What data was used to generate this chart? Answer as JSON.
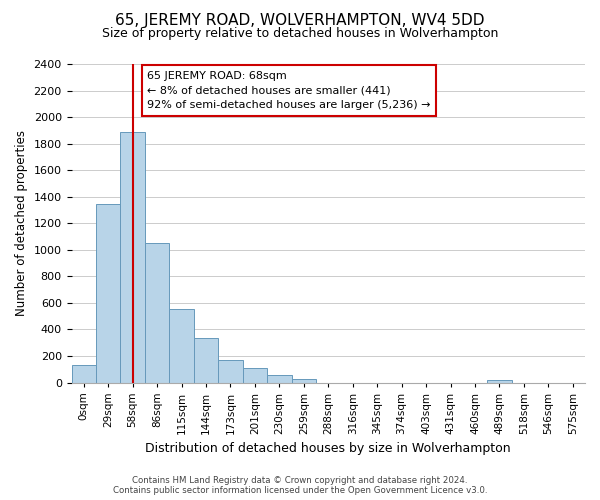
{
  "title": "65, JEREMY ROAD, WOLVERHAMPTON, WV4 5DD",
  "subtitle": "Size of property relative to detached houses in Wolverhampton",
  "xlabel": "Distribution of detached houses by size in Wolverhampton",
  "ylabel": "Number of detached properties",
  "footer_line1": "Contains HM Land Registry data © Crown copyright and database right 2024.",
  "footer_line2": "Contains public sector information licensed under the Open Government Licence v3.0.",
  "annotation_title": "65 JEREMY ROAD: 68sqm",
  "annotation_line1": "← 8% of detached houses are smaller (441)",
  "annotation_line2": "92% of semi-detached houses are larger (5,236) →",
  "bar_values": [
    135,
    1345,
    1890,
    1050,
    555,
    335,
    170,
    110,
    60,
    30,
    0,
    0,
    0,
    0,
    0,
    0,
    0,
    20,
    0
  ],
  "bin_labels": [
    "0sqm",
    "29sqm",
    "58sqm",
    "86sqm",
    "115sqm",
    "144sqm",
    "173sqm",
    "201sqm",
    "230sqm",
    "259sqm",
    "288sqm",
    "316sqm",
    "345sqm",
    "374sqm",
    "403sqm",
    "431sqm",
    "460sqm",
    "489sqm",
    "518sqm"
  ],
  "extra_labels": [
    "546sqm",
    "575sqm"
  ],
  "bar_color": "#b8d4e8",
  "bar_edge_color": "#6699bb",
  "grid_color": "#cccccc",
  "vline_x": 2,
  "vline_color": "#cc0000",
  "annotation_box_color": "#ffffff",
  "annotation_box_edge": "#cc0000",
  "ylim": [
    0,
    2400
  ],
  "yticks": [
    0,
    200,
    400,
    600,
    800,
    1000,
    1200,
    1400,
    1600,
    1800,
    2000,
    2200,
    2400
  ],
  "figsize": [
    6.0,
    5.0
  ],
  "dpi": 100
}
